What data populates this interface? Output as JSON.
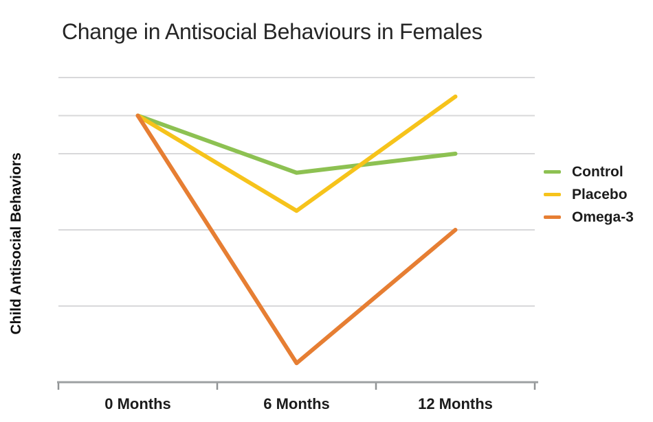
{
  "title": "Change in Antisocial Behaviours in Females",
  "y_axis_label": "Child Antisocial Behaviors",
  "legend": [
    {
      "label": "Control",
      "color": "#8dc152"
    },
    {
      "label": "Placebo",
      "color": "#f6c31b"
    },
    {
      "label": "Omega-3",
      "color": "#e67e33"
    }
  ],
  "chart_data": {
    "type": "line",
    "title": "Change in Antisocial Behaviours in Females",
    "xlabel": "",
    "ylabel": "Child Antisocial Behaviors",
    "categories": [
      "0 Months",
      "6 Months",
      "12 Months"
    ],
    "series": [
      {
        "name": "Control",
        "color": "#8dc152",
        "values": [
          3.5,
          2.75,
          3.0
        ]
      },
      {
        "name": "Placebo",
        "color": "#f6c31b",
        "values": [
          3.5,
          2.25,
          3.75
        ]
      },
      {
        "name": "Omega-3",
        "color": "#e67e33",
        "values": [
          3.5,
          0.25,
          2.0
        ]
      }
    ],
    "ylim": [
      0,
      4.2
    ],
    "y_tick_labels_visible": false,
    "gridline_values": [
      1,
      2,
      3,
      3.5,
      4
    ],
    "grid": "horizontal-only",
    "gridline_color": "#d8d8da",
    "axis_color": "#9da0a2",
    "tick_color": "#8f9294",
    "label_color": "#1b1b1b",
    "legend_position": "right"
  }
}
